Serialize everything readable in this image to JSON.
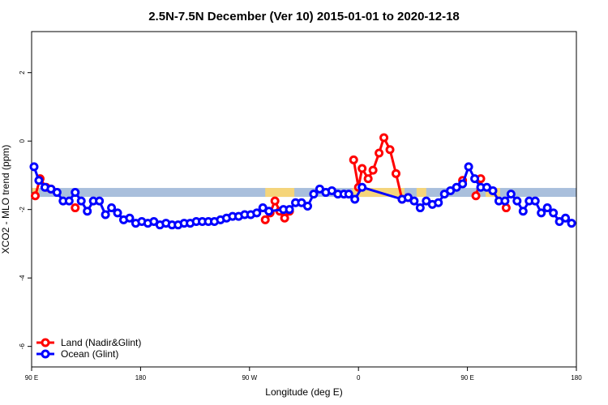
{
  "chart_data": {
    "type": "line",
    "title": "2.5N-7.5N December (Ver 10)   2015-01-01 to 2020-12-18",
    "xlabel": "Longitude (deg E)",
    "ylabel": "XCO2 - MLO trend (ppm)",
    "x_ticks": [
      {
        "value": 90,
        "label": "90 E"
      },
      {
        "value": 180,
        "label": "180"
      },
      {
        "value": 270,
        "label": "90 W"
      },
      {
        "value": 360,
        "label": "0"
      },
      {
        "value": 450,
        "label": "90 E"
      },
      {
        "value": 540,
        "label": "180"
      }
    ],
    "y_ticks": [
      2,
      0,
      -2,
      -4,
      -6
    ],
    "xlim": [
      90,
      540
    ],
    "ylim": [
      -6.6,
      3.2
    ],
    "grid": false,
    "legend_position": "bottom-left",
    "land_band": {
      "y": -1.5,
      "segments": [
        [
          90,
          96
        ],
        [
          283,
          307
        ],
        [
          355,
          398
        ],
        [
          408,
          416
        ],
        [
          465,
          477
        ]
      ],
      "color": "#f5d57a"
    },
    "ocean_band": {
      "y": -1.5,
      "segments": [
        [
          90,
          540
        ]
      ],
      "color": "#a9bfdc"
    },
    "series": [
      {
        "name": "Land (Nadir&Glint)",
        "color": "#ff0000",
        "segments": [
          [
            [
              93,
              -1.6
            ],
            [
              97,
              -1.1
            ],
            [
              102,
              -1.35
            ],
            [
              106,
              -1.4
            ]
          ],
          [
            [
              126,
              -1.95
            ]
          ],
          [
            [
              283,
              -2.3
            ],
            [
              287,
              -2.1
            ],
            [
              291,
              -1.75
            ],
            [
              295,
              -2.05
            ],
            [
              299,
              -2.25
            ],
            [
              303,
              -2.05
            ]
          ],
          [
            [
              356,
              -0.55
            ],
            [
              360,
              -1.35
            ],
            [
              363,
              -0.8
            ],
            [
              368,
              -1.1
            ],
            [
              372,
              -0.85
            ],
            [
              377,
              -0.35
            ],
            [
              381,
              0.1
            ],
            [
              386,
              -0.25
            ],
            [
              391,
              -0.95
            ],
            [
              396,
              -1.7
            ],
            [
              401,
              -1.65
            ]
          ],
          [
            [
              446,
              -1.15
            ]
          ],
          [
            [
              457,
              -1.6
            ],
            [
              461,
              -1.1
            ]
          ],
          [
            [
              482,
              -1.95
            ]
          ]
        ]
      },
      {
        "name": "Ocean (Glint)",
        "color": "#0000ff",
        "points": [
          [
            92,
            -0.75
          ],
          [
            96,
            -1.15
          ],
          [
            101,
            -1.35
          ],
          [
            106,
            -1.4
          ],
          [
            111,
            -1.5
          ],
          [
            116,
            -1.75
          ],
          [
            121,
            -1.75
          ],
          [
            126,
            -1.5
          ],
          [
            131,
            -1.75
          ],
          [
            136,
            -2.05
          ],
          [
            141,
            -1.75
          ],
          [
            146,
            -1.75
          ],
          [
            151,
            -2.15
          ],
          [
            156,
            -1.95
          ],
          [
            161,
            -2.1
          ],
          [
            166,
            -2.3
          ],
          [
            171,
            -2.25
          ],
          [
            176,
            -2.4
          ],
          [
            181,
            -2.35
          ],
          [
            186,
            -2.4
          ],
          [
            191,
            -2.35
          ],
          [
            196,
            -2.45
          ],
          [
            201,
            -2.4
          ],
          [
            206,
            -2.45
          ],
          [
            211,
            -2.45
          ],
          [
            216,
            -2.4
          ],
          [
            221,
            -2.4
          ],
          [
            226,
            -2.35
          ],
          [
            231,
            -2.35
          ],
          [
            236,
            -2.35
          ],
          [
            241,
            -2.35
          ],
          [
            246,
            -2.3
          ],
          [
            251,
            -2.25
          ],
          [
            256,
            -2.2
          ],
          [
            261,
            -2.2
          ],
          [
            266,
            -2.15
          ],
          [
            271,
            -2.15
          ],
          [
            276,
            -2.1
          ],
          [
            281,
            -1.95
          ],
          [
            286,
            -2.05
          ],
          [
            298,
            -2.0
          ],
          [
            303,
            -2.0
          ],
          [
            308,
            -1.8
          ],
          [
            313,
            -1.8
          ],
          [
            318,
            -1.9
          ],
          [
            323,
            -1.55
          ],
          [
            328,
            -1.4
          ],
          [
            333,
            -1.5
          ],
          [
            338,
            -1.45
          ],
          [
            343,
            -1.55
          ],
          [
            348,
            -1.55
          ],
          [
            352,
            -1.55
          ],
          [
            357,
            -1.7
          ],
          [
            363,
            -1.35
          ],
          [
            396,
            -1.7
          ],
          [
            401,
            -1.65
          ],
          [
            406,
            -1.75
          ],
          [
            411,
            -1.95
          ],
          [
            416,
            -1.75
          ],
          [
            421,
            -1.85
          ],
          [
            426,
            -1.8
          ],
          [
            431,
            -1.55
          ],
          [
            436,
            -1.45
          ],
          [
            441,
            -1.35
          ],
          [
            446,
            -1.25
          ],
          [
            451,
            -0.75
          ],
          [
            456,
            -1.1
          ],
          [
            461,
            -1.35
          ],
          [
            466,
            -1.35
          ],
          [
            471,
            -1.45
          ],
          [
            476,
            -1.75
          ],
          [
            481,
            -1.75
          ],
          [
            486,
            -1.55
          ],
          [
            491,
            -1.75
          ],
          [
            496,
            -2.05
          ],
          [
            501,
            -1.75
          ],
          [
            506,
            -1.75
          ],
          [
            511,
            -2.1
          ],
          [
            516,
            -1.95
          ],
          [
            521,
            -2.1
          ],
          [
            526,
            -2.35
          ],
          [
            531,
            -2.25
          ],
          [
            536,
            -2.4
          ]
        ]
      }
    ]
  }
}
